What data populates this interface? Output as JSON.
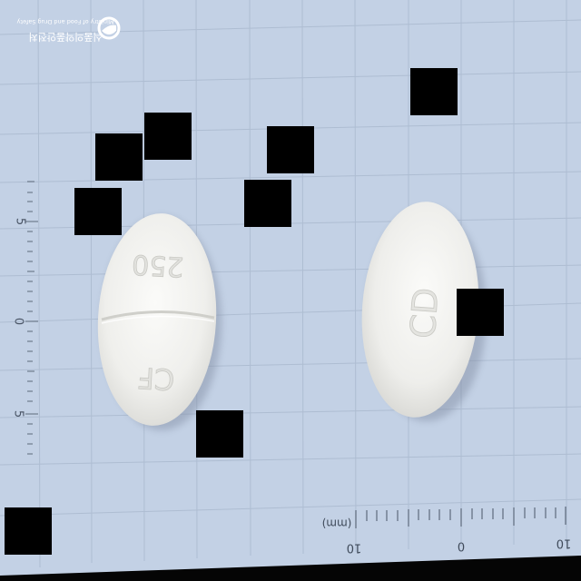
{
  "logo": {
    "org_name_ko": "식품의약품안전처",
    "org_name_en": "Ministry of Food and Drug Safety"
  },
  "ruler_left": {
    "labels": [
      "5",
      "0",
      "5"
    ]
  },
  "ruler_bottom": {
    "unit": "(mm)",
    "labels": [
      "10",
      "0",
      "10"
    ]
  },
  "pill_left": {
    "imprint_top": "250",
    "imprint_bottom": "CF"
  },
  "pill_right": {
    "imprint": "CD"
  },
  "colors": {
    "grid_background": "#c2d0e4",
    "grid_line": "#a9b9cf",
    "pill": "#f2f2ef"
  }
}
